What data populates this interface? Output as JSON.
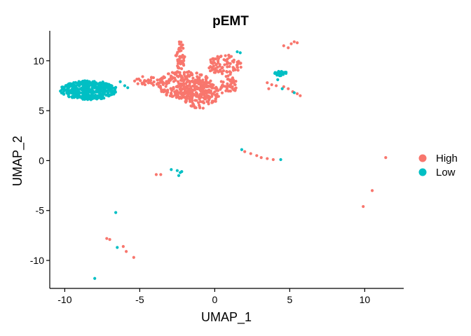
{
  "chart_data": {
    "type": "scatter",
    "title": "pEMT",
    "xlabel": "UMAP_1",
    "ylabel": "UMAP_2",
    "xlim": [
      -11.0,
      12.6
    ],
    "ylim": [
      -12.8,
      13.0
    ],
    "xticks": [
      -10,
      -5,
      0,
      5,
      10
    ],
    "yticks": [
      -10,
      -5,
      0,
      5,
      10
    ],
    "xtick_labels": [
      "-10",
      "-5",
      "0",
      "5",
      "10"
    ],
    "ytick_labels": [
      "-10",
      "-5",
      "0",
      "5",
      "10"
    ],
    "grid": false,
    "legend_position": "right",
    "series": [
      {
        "name": "High",
        "color": "#F8766D",
        "clusters": [
          {
            "x": [
              -3.8,
              -0.2
            ],
            "y": [
              6.2,
              9.0
            ],
            "n": 260
          },
          {
            "x": [
              -2.6,
              -2.0
            ],
            "y": [
              9.0,
              12.0
            ],
            "n": 45
          },
          {
            "x": [
              -2.2,
              0.3
            ],
            "y": [
              5.2,
              8.2
            ],
            "n": 160
          },
          {
            "x": [
              -0.5,
              1.8
            ],
            "y": [
              8.5,
              10.6
            ],
            "n": 90
          },
          {
            "x": [
              0.3,
              1.5
            ],
            "y": [
              6.5,
              8.5
            ],
            "n": 45
          },
          {
            "x": [
              -5.5,
              -3.5
            ],
            "y": [
              7.5,
              8.5
            ],
            "n": 35
          }
        ],
        "points": [
          {
            "x": 4.6,
            "y": 11.5
          },
          {
            "x": 4.9,
            "y": 11.3
          },
          {
            "x": 5.1,
            "y": 11.7
          },
          {
            "x": 5.3,
            "y": 11.9
          },
          {
            "x": 5.5,
            "y": 11.8
          },
          {
            "x": 3.5,
            "y": 7.8
          },
          {
            "x": 3.8,
            "y": 7.6
          },
          {
            "x": 4.1,
            "y": 7.5
          },
          {
            "x": 4.6,
            "y": 7.4
          },
          {
            "x": 4.9,
            "y": 7.2
          },
          {
            "x": 5.2,
            "y": 6.9
          },
          {
            "x": 5.5,
            "y": 6.7
          },
          {
            "x": 5.7,
            "y": 6.5
          },
          {
            "x": 3.6,
            "y": 7.2
          },
          {
            "x": 2.0,
            "y": 0.9
          },
          {
            "x": 2.4,
            "y": 0.7
          },
          {
            "x": 2.8,
            "y": 0.5
          },
          {
            "x": 3.1,
            "y": 0.3
          },
          {
            "x": 3.5,
            "y": 0.2
          },
          {
            "x": 3.9,
            "y": 0.1
          },
          {
            "x": 11.4,
            "y": 0.3
          },
          {
            "x": 10.5,
            "y": -3.0
          },
          {
            "x": 9.9,
            "y": -4.6
          },
          {
            "x": -3.9,
            "y": -1.4
          },
          {
            "x": -3.6,
            "y": -1.4
          },
          {
            "x": -7.2,
            "y": -7.8
          },
          {
            "x": -7.0,
            "y": -7.9
          },
          {
            "x": -6.1,
            "y": -8.6
          },
          {
            "x": -5.9,
            "y": -9.1
          },
          {
            "x": -5.4,
            "y": -9.7
          }
        ]
      },
      {
        "name": "Low",
        "color": "#00BFC4",
        "clusters": [
          {
            "x": [
              -10.3,
              -6.5
            ],
            "y": [
              6.1,
              8.0
            ],
            "n": 420
          },
          {
            "x": [
              4.0,
              4.8
            ],
            "y": [
              8.5,
              9.0
            ],
            "n": 25
          }
        ],
        "points": [
          {
            "x": -6.0,
            "y": 7.5
          },
          {
            "x": -5.8,
            "y": 7.3
          },
          {
            "x": -6.3,
            "y": 7.9
          },
          {
            "x": -6.7,
            "y": 6.8
          },
          {
            "x": 1.5,
            "y": 10.9
          },
          {
            "x": 1.7,
            "y": 10.8
          },
          {
            "x": 4.2,
            "y": 8.1
          },
          {
            "x": 4.5,
            "y": 7.2
          },
          {
            "x": 5.3,
            "y": 6.8
          },
          {
            "x": 1.8,
            "y": 1.1
          },
          {
            "x": 4.4,
            "y": 0.1
          },
          {
            "x": -2.9,
            "y": -0.9
          },
          {
            "x": -2.5,
            "y": -1.0
          },
          {
            "x": -2.3,
            "y": -1.2
          },
          {
            "x": -2.2,
            "y": -1.1
          },
          {
            "x": -2.4,
            "y": -1.5
          },
          {
            "x": -6.6,
            "y": -5.2
          },
          {
            "x": -6.5,
            "y": -8.7
          },
          {
            "x": -8.0,
            "y": -11.8
          }
        ]
      }
    ]
  }
}
